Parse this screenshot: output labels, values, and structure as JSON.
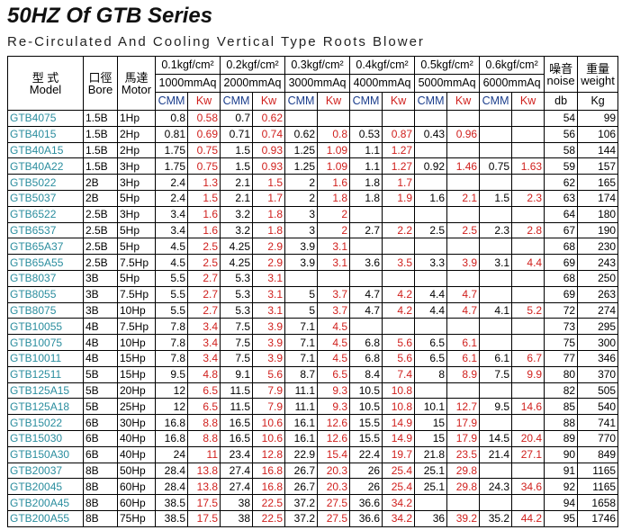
{
  "title": "50HZ Of GTB Series",
  "subtitle": "Re-Circulated And Cooling Vertical Type Roots Blower",
  "table": {
    "header": {
      "model_zh": "型 式",
      "model": "Model",
      "bore_zh": "口徑",
      "bore": "Bore",
      "motor_zh": "馬達",
      "motor": "Motor",
      "groups": [
        {
          "pressure": "0.1kgf/cm²",
          "height": "1000mmAq"
        },
        {
          "pressure": "0.2kgf/cm²",
          "height": "2000mmAq"
        },
        {
          "pressure": "0.3kgf/cm²",
          "height": "3000mmAq"
        },
        {
          "pressure": "0.4kgf/cm²",
          "height": "4000mmAq"
        },
        {
          "pressure": "0.5kgf/cm²",
          "height": "5000mmAq"
        },
        {
          "pressure": "0.6kgf/cm²",
          "height": "6000mmAq"
        }
      ],
      "flow": "CMM",
      "power": "Kw",
      "noise_zh": "噪音",
      "noise": "noise",
      "noise_unit": "db",
      "weight_zh": "重量",
      "weight": "weight",
      "weight_unit": "Kg"
    },
    "rows": [
      [
        "GTB4075",
        "1.5B",
        "1Hp",
        0.8,
        0.58,
        0.7,
        0.62,
        null,
        null,
        null,
        null,
        null,
        null,
        null,
        null,
        54,
        99
      ],
      [
        "GTB4015",
        "1.5B",
        "2Hp",
        0.81,
        0.69,
        0.71,
        0.74,
        0.62,
        0.8,
        0.53,
        0.87,
        0.43,
        0.96,
        null,
        null,
        56,
        106
      ],
      [
        "GTB40A15",
        "1.5B",
        "2Hp",
        1.75,
        0.75,
        1.5,
        0.93,
        1.25,
        1.09,
        1.1,
        1.27,
        null,
        null,
        null,
        null,
        58,
        144
      ],
      [
        "GTB40A22",
        "1.5B",
        "3Hp",
        1.75,
        0.75,
        1.5,
        0.93,
        1.25,
        1.09,
        1.1,
        1.27,
        0.92,
        1.46,
        0.75,
        1.63,
        59,
        157
      ],
      [
        "GTB5022",
        "2B",
        "3Hp",
        2.4,
        1.3,
        2.1,
        1.5,
        2,
        1.6,
        1.8,
        1.7,
        null,
        null,
        null,
        null,
        62,
        165
      ],
      [
        "GTB5037",
        "2B",
        "5Hp",
        2.4,
        1.5,
        2.1,
        1.7,
        2,
        1.8,
        1.8,
        1.9,
        1.6,
        2.1,
        1.5,
        2.3,
        63,
        174
      ],
      [
        "GTB6522",
        "2.5B",
        "3Hp",
        3.4,
        1.6,
        3.2,
        1.8,
        3,
        2,
        null,
        null,
        null,
        null,
        null,
        null,
        64,
        180
      ],
      [
        "GTB6537",
        "2.5B",
        "5Hp",
        3.4,
        1.6,
        3.2,
        1.8,
        3,
        2,
        2.7,
        2.2,
        2.5,
        2.5,
        2.3,
        2.8,
        67,
        190
      ],
      [
        "GTB65A37",
        "2.5B",
        "5Hp",
        4.5,
        2.5,
        4.25,
        2.9,
        3.9,
        3.1,
        null,
        null,
        null,
        null,
        null,
        null,
        68,
        230
      ],
      [
        "GTB65A55",
        "2.5B",
        "7.5Hp",
        4.5,
        2.5,
        4.25,
        2.9,
        3.9,
        3.1,
        3.6,
        3.5,
        3.3,
        3.9,
        3.1,
        4.4,
        69,
        243
      ],
      [
        "GTB8037",
        "3B",
        "5Hp",
        5.5,
        2.7,
        5.3,
        3.1,
        null,
        null,
        null,
        null,
        null,
        null,
        null,
        null,
        68,
        250
      ],
      [
        "GTB8055",
        "3B",
        "7.5Hp",
        5.5,
        2.7,
        5.3,
        3.1,
        5,
        3.7,
        4.7,
        4.2,
        4.4,
        4.7,
        null,
        null,
        69,
        263
      ],
      [
        "GTB8075",
        "3B",
        "10Hp",
        5.5,
        2.7,
        5.3,
        3.1,
        5,
        3.7,
        4.7,
        4.2,
        4.4,
        4.7,
        4.1,
        5.2,
        72,
        274
      ],
      [
        "GTB10055",
        "4B",
        "7.5Hp",
        7.8,
        3.4,
        7.5,
        3.9,
        7.1,
        4.5,
        null,
        null,
        null,
        null,
        null,
        null,
        73,
        295
      ],
      [
        "GTB10075",
        "4B",
        "10Hp",
        7.8,
        3.4,
        7.5,
        3.9,
        7.1,
        4.5,
        6.8,
        5.6,
        6.5,
        6.1,
        null,
        null,
        75,
        300
      ],
      [
        "GTB10011",
        "4B",
        "15Hp",
        7.8,
        3.4,
        7.5,
        3.9,
        7.1,
        4.5,
        6.8,
        5.6,
        6.5,
        6.1,
        6.1,
        6.7,
        77,
        346
      ],
      [
        "GTB12511",
        "5B",
        "15Hp",
        9.5,
        4.8,
        9.1,
        5.6,
        8.7,
        6.5,
        8.4,
        7.4,
        8,
        8.9,
        7.5,
        9.9,
        80,
        370
      ],
      [
        "GTB125A15",
        "5B",
        "20Hp",
        12,
        6.5,
        11.5,
        7.9,
        11.1,
        9.3,
        10.5,
        10.8,
        null,
        null,
        null,
        null,
        82,
        505
      ],
      [
        "GTB125A18",
        "5B",
        "25Hp",
        12,
        6.5,
        11.5,
        7.9,
        11.1,
        9.3,
        10.5,
        10.8,
        10.1,
        12.7,
        9.5,
        14.6,
        85,
        540
      ],
      [
        "GTB15022",
        "6B",
        "30Hp",
        16.8,
        8.8,
        16.5,
        10.6,
        16.1,
        12.6,
        15.5,
        14.9,
        15,
        17.9,
        null,
        null,
        88,
        741
      ],
      [
        "GTB15030",
        "6B",
        "40Hp",
        16.8,
        8.8,
        16.5,
        10.6,
        16.1,
        12.6,
        15.5,
        14.9,
        15,
        17.9,
        14.5,
        20.4,
        89,
        770
      ],
      [
        "GTB150A30",
        "6B",
        "40Hp",
        24,
        11,
        23.4,
        12.8,
        22.9,
        15.4,
        22.4,
        19.7,
        21.8,
        23.5,
        21.4,
        27.1,
        90,
        849
      ],
      [
        "GTB20037",
        "8B",
        "50Hp",
        28.4,
        13.8,
        27.4,
        16.8,
        26.7,
        20.3,
        26,
        25.4,
        25.1,
        29.8,
        null,
        null,
        91,
        1165
      ],
      [
        "GTB20045",
        "8B",
        "60Hp",
        28.4,
        13.8,
        27.4,
        16.8,
        26.7,
        20.3,
        26,
        25.4,
        25.1,
        29.8,
        24.3,
        34.6,
        92,
        1165
      ],
      [
        "GTB200A45",
        "8B",
        "60Hp",
        38.5,
        17.5,
        38,
        22.5,
        37.2,
        27.5,
        36.6,
        34.2,
        null,
        null,
        null,
        null,
        94,
        1658
      ],
      [
        "GTB200A55",
        "8B",
        "75Hp",
        38.5,
        17.5,
        38,
        22.5,
        37.2,
        27.5,
        36.6,
        34.2,
        36,
        39.2,
        35.2,
        44.2,
        95,
        1746
      ]
    ]
  }
}
